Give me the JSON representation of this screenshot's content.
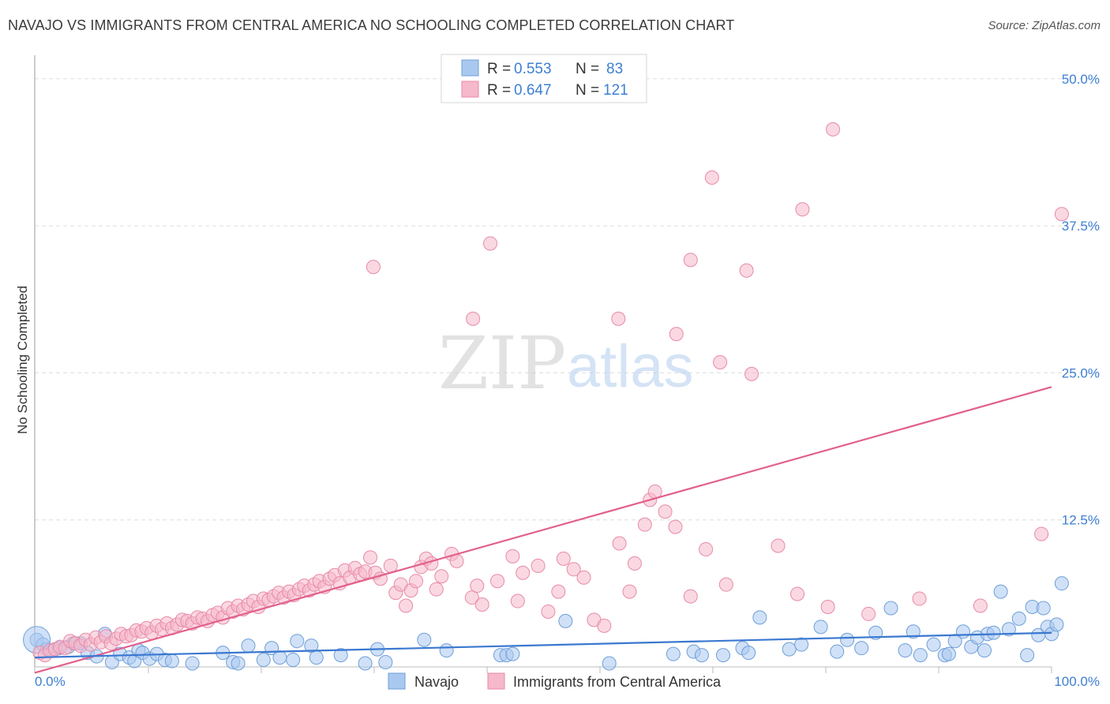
{
  "title": "NAVAJO VS IMMIGRANTS FROM CENTRAL AMERICA NO SCHOOLING COMPLETED CORRELATION CHART",
  "source": "Source: ZipAtlas.com",
  "watermark": {
    "zip": "ZIP",
    "atlas": "atlas"
  },
  "colors": {
    "navajo_fill": "#a9c8f0",
    "navajo_stroke": "#6f9fd8",
    "navajo_line": "#3a78d0",
    "cam_fill": "#f6b8cb",
    "cam_stroke": "#e88aa8",
    "cam_line": "#e2608c",
    "tick_label": "#3d7fd3",
    "grid": "#dddddd"
  },
  "legend_top": {
    "rows": [
      {
        "r_label": "R =",
        "r_value": "0.553",
        "n_label": "N =",
        "n_value": "83"
      },
      {
        "r_label": "R =",
        "r_value": "0.647",
        "n_label": "N =",
        "n_value": "121"
      }
    ]
  },
  "chart_data": {
    "type": "scatter",
    "ylabel": "No Schooling Completed",
    "xlim": [
      0,
      100
    ],
    "ylim": [
      0,
      52
    ],
    "x_tick_labels": {
      "left": "0.0%",
      "right": "100.0%"
    },
    "y_ticks": [
      {
        "value": 12.5,
        "label": "12.5%"
      },
      {
        "value": 25,
        "label": "25.0%"
      },
      {
        "value": 37.5,
        "label": "37.5%"
      },
      {
        "value": 50,
        "label": "50.0%"
      }
    ],
    "grid": true,
    "legend": "bottom-center",
    "series": [
      {
        "name": "Navajo",
        "r": 0.553,
        "n": 83,
        "trend": {
          "x0": 0,
          "y0": 0.8,
          "x1": 100,
          "y1": 2.9
        },
        "points": [
          [
            0.2,
            2.3
          ],
          [
            0.8,
            1.9
          ],
          [
            1.2,
            1.5
          ],
          [
            1.8,
            1.4
          ],
          [
            2.4,
            1.6
          ],
          [
            3.3,
            1.7
          ],
          [
            3.8,
            2.0
          ],
          [
            4.5,
            2.0
          ],
          [
            5.2,
            1.2
          ],
          [
            6.1,
            0.9
          ],
          [
            6.9,
            2.8
          ],
          [
            7.6,
            0.4
          ],
          [
            8.4,
            1.1
          ],
          [
            9.3,
            0.8
          ],
          [
            9.8,
            0.5
          ],
          [
            10.2,
            1.4
          ],
          [
            10.6,
            1.2
          ],
          [
            11.3,
            0.7
          ],
          [
            12.0,
            1.1
          ],
          [
            12.8,
            0.6
          ],
          [
            13.5,
            0.5
          ],
          [
            15.5,
            0.3
          ],
          [
            18.5,
            1.2
          ],
          [
            19.5,
            0.4
          ],
          [
            20.0,
            0.3
          ],
          [
            21.0,
            1.8
          ],
          [
            22.5,
            0.6
          ],
          [
            23.3,
            1.6
          ],
          [
            24.1,
            0.8
          ],
          [
            25.4,
            0.6
          ],
          [
            25.8,
            2.2
          ],
          [
            27.2,
            1.8
          ],
          [
            27.7,
            0.8
          ],
          [
            30.1,
            1.0
          ],
          [
            32.5,
            0.3
          ],
          [
            33.7,
            1.5
          ],
          [
            34.5,
            0.4
          ],
          [
            38.3,
            2.3
          ],
          [
            40.5,
            1.4
          ],
          [
            45.8,
            1.0
          ],
          [
            46.4,
            1.0
          ],
          [
            47.0,
            1.1
          ],
          [
            52.2,
            3.9
          ],
          [
            56.5,
            0.3
          ],
          [
            62.8,
            1.1
          ],
          [
            64.8,
            1.3
          ],
          [
            65.6,
            1.0
          ],
          [
            67.7,
            1.0
          ],
          [
            69.6,
            1.6
          ],
          [
            70.2,
            1.2
          ],
          [
            71.3,
            4.2
          ],
          [
            74.2,
            1.5
          ],
          [
            75.4,
            1.9
          ],
          [
            77.3,
            3.4
          ],
          [
            78.9,
            1.3
          ],
          [
            79.9,
            2.3
          ],
          [
            81.3,
            1.6
          ],
          [
            82.7,
            2.9
          ],
          [
            84.2,
            5.0
          ],
          [
            85.6,
            1.4
          ],
          [
            86.4,
            3.0
          ],
          [
            87.1,
            1.0
          ],
          [
            88.4,
            1.9
          ],
          [
            89.5,
            1.0
          ],
          [
            89.9,
            1.1
          ],
          [
            90.5,
            2.2
          ],
          [
            91.3,
            3.0
          ],
          [
            92.1,
            1.7
          ],
          [
            92.7,
            2.5
          ],
          [
            93.4,
            1.4
          ],
          [
            93.7,
            2.8
          ],
          [
            94.3,
            2.9
          ],
          [
            95.0,
            6.4
          ],
          [
            95.8,
            3.2
          ],
          [
            96.8,
            4.1
          ],
          [
            97.6,
            1.0
          ],
          [
            98.1,
            5.1
          ],
          [
            98.7,
            2.7
          ],
          [
            99.2,
            5.0
          ],
          [
            99.6,
            3.4
          ],
          [
            100.0,
            2.8
          ],
          [
            100.5,
            3.6
          ],
          [
            101.0,
            7.1
          ]
        ]
      },
      {
        "name": "Immigrants from Central America",
        "r": 0.647,
        "n": 121,
        "trend": {
          "x0": 0,
          "y0": -0.5,
          "x1": 100,
          "y1": 23.8
        },
        "points": [
          [
            0.5,
            1.2
          ],
          [
            1.0,
            1.0
          ],
          [
            1.5,
            1.4
          ],
          [
            2.0,
            1.5
          ],
          [
            2.5,
            1.7
          ],
          [
            3.0,
            1.6
          ],
          [
            3.5,
            2.2
          ],
          [
            4.0,
            2.0
          ],
          [
            4.5,
            1.8
          ],
          [
            5.0,
            2.3
          ],
          [
            5.5,
            1.9
          ],
          [
            6.0,
            2.5
          ],
          [
            6.5,
            2.1
          ],
          [
            7.0,
            2.6
          ],
          [
            7.5,
            2.0
          ],
          [
            8.0,
            2.4
          ],
          [
            8.5,
            2.8
          ],
          [
            9.0,
            2.6
          ],
          [
            9.5,
            2.7
          ],
          [
            10.0,
            3.1
          ],
          [
            10.5,
            3.0
          ],
          [
            11.0,
            3.3
          ],
          [
            11.5,
            2.9
          ],
          [
            12.0,
            3.5
          ],
          [
            12.5,
            3.2
          ],
          [
            13.0,
            3.7
          ],
          [
            13.5,
            3.3
          ],
          [
            14.0,
            3.6
          ],
          [
            14.5,
            4.0
          ],
          [
            15.0,
            3.9
          ],
          [
            15.5,
            3.7
          ],
          [
            16.0,
            4.2
          ],
          [
            16.5,
            4.1
          ],
          [
            17.0,
            3.9
          ],
          [
            17.5,
            4.4
          ],
          [
            18.0,
            4.6
          ],
          [
            18.5,
            4.2
          ],
          [
            19.0,
            5.0
          ],
          [
            19.5,
            4.7
          ],
          [
            20.0,
            5.2
          ],
          [
            20.5,
            4.9
          ],
          [
            21.0,
            5.3
          ],
          [
            21.5,
            5.6
          ],
          [
            22.0,
            5.1
          ],
          [
            22.5,
            5.8
          ],
          [
            23.0,
            5.7
          ],
          [
            23.5,
            6.0
          ],
          [
            24.0,
            6.3
          ],
          [
            24.5,
            5.9
          ],
          [
            25.0,
            6.4
          ],
          [
            25.5,
            6.1
          ],
          [
            26.0,
            6.6
          ],
          [
            26.5,
            6.9
          ],
          [
            27.0,
            6.5
          ],
          [
            27.5,
            7.0
          ],
          [
            28.0,
            7.3
          ],
          [
            28.5,
            6.8
          ],
          [
            29.0,
            7.5
          ],
          [
            29.5,
            7.8
          ],
          [
            30.0,
            7.1
          ],
          [
            30.5,
            8.2
          ],
          [
            31.0,
            7.6
          ],
          [
            31.5,
            8.4
          ],
          [
            32.0,
            7.9
          ],
          [
            32.5,
            8.1
          ],
          [
            33.0,
            9.3
          ],
          [
            33.5,
            8.0
          ],
          [
            34.0,
            7.5
          ],
          [
            35.0,
            8.6
          ],
          [
            35.5,
            6.3
          ],
          [
            36.0,
            7.0
          ],
          [
            36.5,
            5.2
          ],
          [
            37.0,
            6.5
          ],
          [
            37.5,
            7.3
          ],
          [
            38.0,
            8.5
          ],
          [
            38.5,
            9.2
          ],
          [
            39.0,
            8.8
          ],
          [
            39.5,
            6.6
          ],
          [
            40.0,
            7.7
          ],
          [
            41.0,
            9.6
          ],
          [
            41.5,
            9.0
          ],
          [
            43.0,
            5.9
          ],
          [
            43.5,
            6.9
          ],
          [
            44.0,
            5.3
          ],
          [
            45.5,
            7.3
          ],
          [
            47.0,
            9.4
          ],
          [
            47.5,
            5.6
          ],
          [
            48.0,
            8.0
          ],
          [
            49.5,
            8.6
          ],
          [
            50.5,
            4.7
          ],
          [
            51.5,
            6.4
          ],
          [
            52.0,
            9.2
          ],
          [
            53.0,
            8.3
          ],
          [
            54.0,
            7.6
          ],
          [
            55.0,
            4.0
          ],
          [
            56.0,
            3.5
          ],
          [
            57.5,
            10.5
          ],
          [
            58.5,
            6.4
          ],
          [
            59.0,
            8.8
          ],
          [
            60.0,
            12.1
          ],
          [
            60.5,
            14.2
          ],
          [
            61.0,
            14.9
          ],
          [
            62.0,
            13.2
          ],
          [
            63.0,
            11.9
          ],
          [
            64.5,
            6.0
          ],
          [
            66.0,
            10.0
          ],
          [
            68.0,
            7.0
          ],
          [
            33.3,
            34.0
          ],
          [
            43.1,
            29.6
          ],
          [
            44.8,
            36.0
          ],
          [
            57.4,
            29.6
          ],
          [
            63.1,
            28.3
          ],
          [
            64.5,
            34.6
          ],
          [
            67.4,
            25.9
          ],
          [
            66.6,
            41.6
          ],
          [
            73.1,
            10.3
          ],
          [
            75.0,
            6.2
          ],
          [
            78.0,
            5.1
          ],
          [
            82.0,
            4.5
          ],
          [
            87.0,
            5.8
          ],
          [
            93.0,
            5.2
          ],
          [
            101.0,
            38.5
          ],
          [
            99.0,
            11.3
          ],
          [
            70.5,
            24.9
          ],
          [
            70.0,
            33.7
          ],
          [
            75.5,
            38.9
          ],
          [
            78.5,
            45.7
          ]
        ]
      }
    ]
  }
}
